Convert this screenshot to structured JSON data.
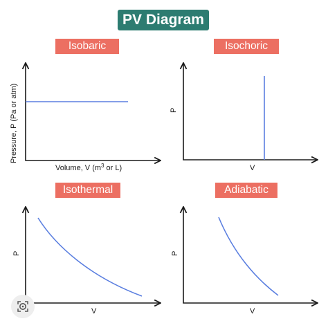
{
  "title": "PV Diagram",
  "panels": {
    "isobaric": {
      "label": "Isobaric",
      "ylabel": "Pressure, P (Pa or atm)",
      "xlabel_prefix": "Volume, V (m",
      "xlabel_sup": "3",
      "xlabel_suffix": " or L)"
    },
    "isochoric": {
      "label": "Isochoric",
      "ylabel": "P",
      "xlabel": "V"
    },
    "isothermal": {
      "label": "Isothermal",
      "ylabel": "P",
      "xlabel": "V"
    },
    "adiabatic": {
      "label": "Adiabatic",
      "ylabel": "P",
      "xlabel": "V"
    }
  },
  "colors": {
    "title_bg": "#2d7c71",
    "label_bg": "#ec6f62",
    "curve": "#5b7fe0",
    "axis": "#1a1a1a"
  },
  "overlay": {
    "icon": "lens-search-icon"
  }
}
